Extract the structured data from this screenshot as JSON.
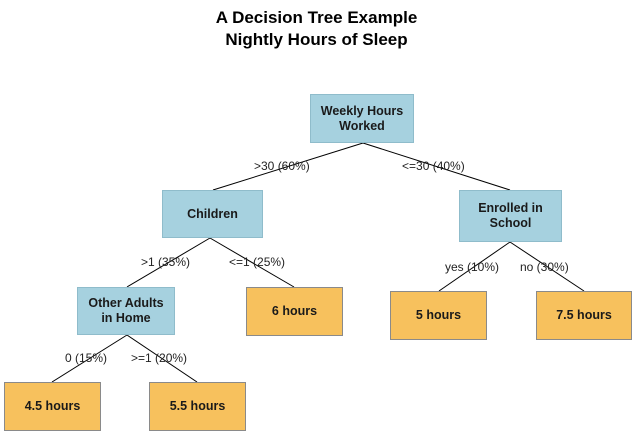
{
  "title": {
    "line1": "A Decision Tree Example",
    "line2": "Nightly Hours of Sleep"
  },
  "nodes": {
    "root": "Weekly Hours\nWorked",
    "children": "Children",
    "enrolled": "Enrolled in\nSchool",
    "other_adults": "Other Adults\nin Home",
    "six_hours": "6 hours",
    "five_hours": "5 hours",
    "seven_five_hours": "7.5 hours",
    "four_five_hours": "4.5 hours",
    "five_five_hours": "5.5 hours"
  },
  "edges": {
    "gt30": ">30 (60%)",
    "le30": "<=30 (40%)",
    "gt1": ">1 (35%)",
    "le1": "<=1 (25%)",
    "yes": "yes (10%)",
    "no": "no (30%)",
    "zero": "0 (15%)",
    "ge1": ">=1 (20%)"
  },
  "colors": {
    "decision_fill": "#a6d1df",
    "leaf_fill": "#f7c15d",
    "edge_line": "#000000"
  }
}
